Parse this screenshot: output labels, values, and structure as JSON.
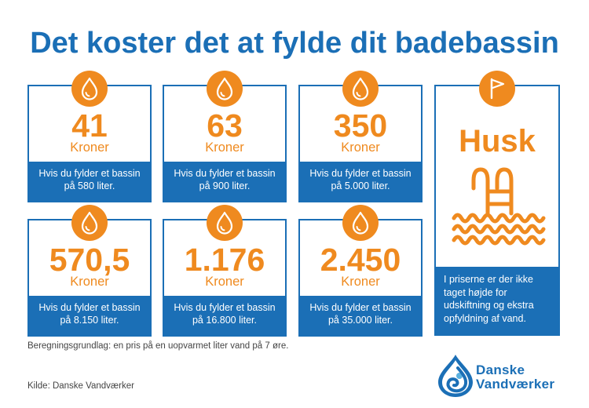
{
  "title": "Det koster det at fylde dit badebassin",
  "colors": {
    "blue": "#1b6fb6",
    "orange": "#ef8a1f",
    "text_gray": "#444444",
    "white": "#ffffff"
  },
  "cards": [
    {
      "icon": "water-drop-icon",
      "amount": "41",
      "unit": "Kroner",
      "lines": [
        "Hvis du fylder et bassin",
        "på 580 liter."
      ]
    },
    {
      "icon": "water-drop-icon",
      "amount": "63",
      "unit": "Kroner",
      "lines": [
        "Hvis du fylder et bassin",
        "på 900 liter."
      ]
    },
    {
      "icon": "water-drop-icon",
      "amount": "350",
      "unit": "Kroner",
      "lines": [
        "Hvis du fylder et bassin",
        "på 5.000 liter."
      ]
    },
    {
      "icon": "water-drop-icon",
      "amount": "570,5",
      "unit": "Kroner",
      "lines": [
        "Hvis du fylder et bassin",
        "på 8.150 liter."
      ]
    },
    {
      "icon": "water-drop-icon",
      "amount": "1.176",
      "unit": "Kroner",
      "lines": [
        "Hvis du fylder et bassin",
        "på 16.800 liter."
      ]
    },
    {
      "icon": "water-drop-icon",
      "amount": "2.450",
      "unit": "Kroner",
      "lines": [
        "Hvis du fylder et bassin",
        "på 35.000 liter."
      ]
    }
  ],
  "reminder": {
    "icon": "flag-icon",
    "heading": "Husk",
    "illustration": "pool-ladder-icon",
    "lines": [
      "I priserne er der ikke",
      "taget højde for",
      "udskiftning og ekstra",
      "opfyldning af vand."
    ]
  },
  "footnote": "Beregningsgrundlag: en pris på en uopvarmet liter vand på 7 øre.",
  "source": "Kilde: Danske Vandværker",
  "logo": {
    "icon": "danske-vandvaerker-logo-icon",
    "line1": "Danske",
    "line2": "Vandværker"
  }
}
